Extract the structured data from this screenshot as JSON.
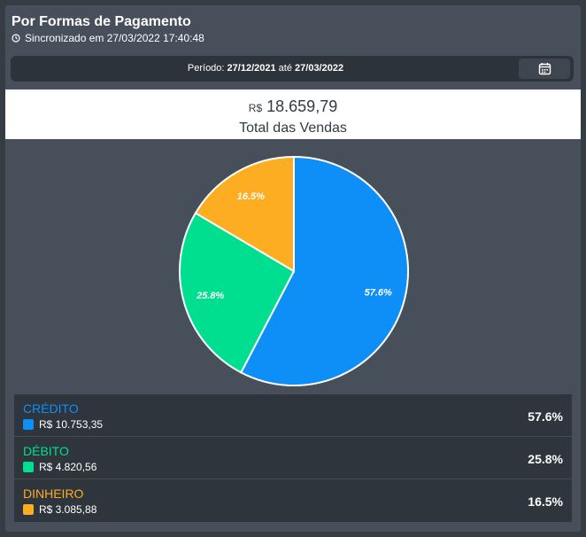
{
  "header": {
    "title": "Por Formas de Pagamento",
    "sync_text": "Sincronizado em 27/03/2022 17:40:48"
  },
  "period": {
    "label": "Período:",
    "start": "27/12/2021",
    "connector": "até",
    "end": "27/03/2022",
    "calendar_icon": "calendar-icon"
  },
  "total": {
    "currency": "R$",
    "value": "18.659,79",
    "label": "Total das Vendas"
  },
  "chart_data": {
    "type": "pie",
    "categories": [
      "CRÉDITO",
      "DÉBITO",
      "DINHEIRO"
    ],
    "values": [
      57.6,
      25.8,
      16.5
    ],
    "labels": [
      "57.6%",
      "25.8%",
      "16.5%"
    ],
    "colors": [
      "#0d8ff7",
      "#00df90",
      "#fdad21"
    ]
  },
  "legend": [
    {
      "name": "CRÉDITO",
      "amount": "R$ 10.753,35",
      "pct": "57.6%",
      "color": "#0d8ff7"
    },
    {
      "name": "DÉBITO",
      "amount": "R$ 4.820,56",
      "pct": "25.8%",
      "color": "#00df90"
    },
    {
      "name": "DINHEIRO",
      "amount": "R$ 3.085,88",
      "pct": "16.5%",
      "color": "#fdad21"
    }
  ]
}
